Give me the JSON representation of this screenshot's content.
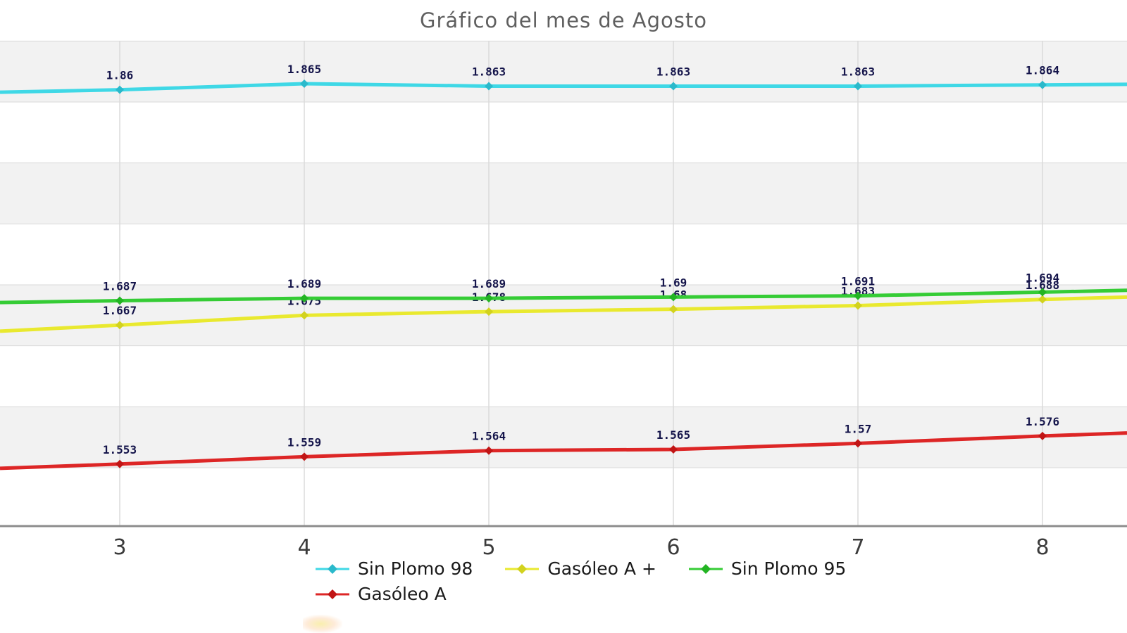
{
  "title": "Gráfico del mes de Agosto",
  "chart_data": {
    "type": "line",
    "title": "Gráfico del mes de Agosto",
    "xlabel": "",
    "ylabel": "",
    "x_ticks": [
      3,
      4,
      5,
      6,
      7,
      8
    ],
    "x_tick_labels": [
      "3",
      "4",
      "5",
      "6",
      "7",
      "8"
    ],
    "x_view_range": [
      2.35,
      8.46
    ],
    "ylim": [
      1.497,
      1.903
    ],
    "y_gridlines": [
      1.9,
      1.85,
      1.8,
      1.75,
      1.7,
      1.65,
      1.6,
      1.55
    ],
    "grid": true,
    "legend_position": "bottom",
    "series": [
      {
        "name": "Sin Plomo 98",
        "color": "#3fd8e6",
        "marker_color": "#2ab9cb",
        "x": [
          3,
          4,
          5,
          6,
          7,
          8
        ],
        "values": [
          1.86,
          1.865,
          1.863,
          1.863,
          1.863,
          1.864
        ],
        "labels": [
          "1.86",
          "1.865",
          "1.863",
          "1.863",
          "1.863",
          "1.864"
        ],
        "edge_left_value": 1.858,
        "edge_right_value": 1.8645
      },
      {
        "name": "Gasóleo A +",
        "color": "#e9e92f",
        "marker_color": "#d2d21e",
        "x": [
          3,
          4,
          5,
          6,
          7,
          8
        ],
        "values": [
          1.667,
          1.675,
          1.678,
          1.68,
          1.683,
          1.688
        ],
        "labels": [
          "1.667",
          "1.675",
          "1.678",
          "1.68",
          "1.683",
          "1.688"
        ],
        "edge_left_value": 1.662,
        "edge_right_value": 1.69
      },
      {
        "name": "Sin Plomo 95",
        "color": "#35cc35",
        "marker_color": "#23b423",
        "x": [
          3,
          4,
          5,
          6,
          7,
          8
        ],
        "values": [
          1.687,
          1.689,
          1.689,
          1.69,
          1.691,
          1.694
        ],
        "labels": [
          "1.687",
          "1.689",
          "1.689",
          "1.69",
          "1.691",
          "1.694"
        ],
        "edge_left_value": 1.6855,
        "edge_right_value": 1.6955
      },
      {
        "name": "Gasóleo A",
        "color": "#dd2626",
        "marker_color": "#c11515",
        "x": [
          3,
          4,
          5,
          6,
          7,
          8
        ],
        "values": [
          1.553,
          1.559,
          1.564,
          1.565,
          1.57,
          1.576
        ],
        "labels": [
          "1.553",
          "1.559",
          "1.564",
          "1.565",
          "1.57",
          "1.576"
        ],
        "edge_left_value": 1.5495,
        "edge_right_value": 1.5785
      }
    ],
    "draw_order": [
      1,
      2,
      0,
      3
    ],
    "legend_rows": [
      [
        0,
        1,
        2
      ],
      [
        3
      ]
    ],
    "colors": {
      "band_gray": "#f2f2f2",
      "gridline": "#d9d9d9",
      "axis": "#8c8c8c",
      "point_label_text": "#15154b",
      "tick_text": "#3b3b3b",
      "title_text": "#5f5f5f",
      "legend_text": "#1a1a1a"
    }
  }
}
